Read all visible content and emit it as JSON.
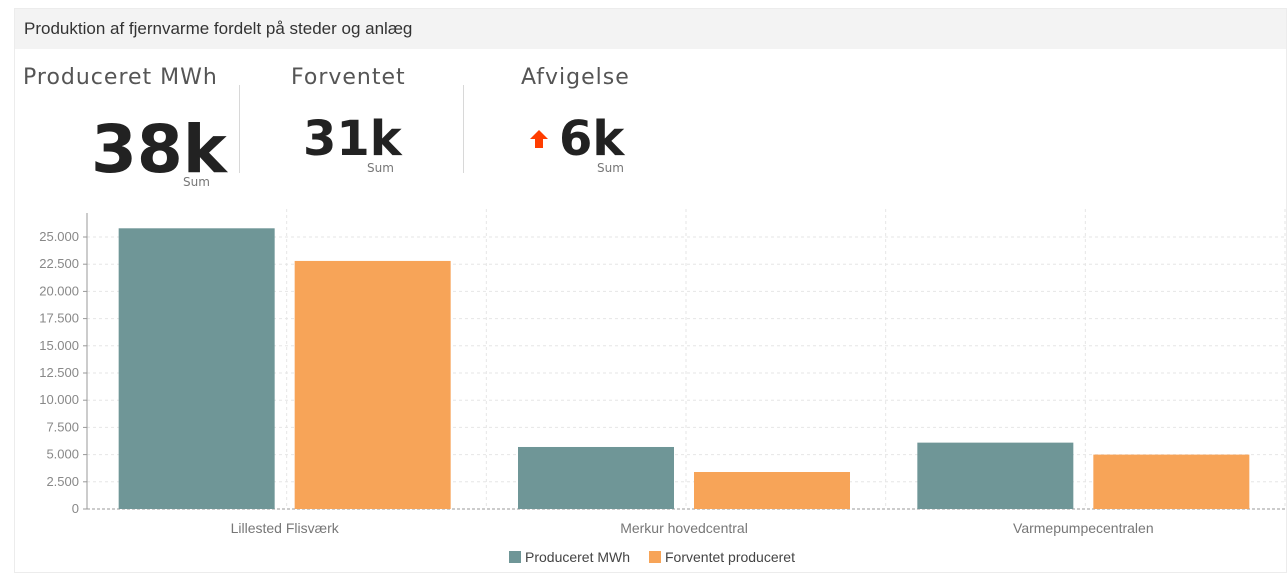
{
  "header": {
    "title": "Produktion af fjernvarme fordelt på steder og anlæg"
  },
  "kpis": [
    {
      "label": "Produceret MWh",
      "value": "38k",
      "sub": "Sum"
    },
    {
      "label": "Forventet",
      "value": "31k",
      "sub": "Sum"
    },
    {
      "label": "Afvigelse",
      "value": "6k",
      "sub": "Sum",
      "trend_icon": "arrow-up-icon",
      "trend_color": "#ff3d00"
    }
  ],
  "colors": {
    "produced": "#6f9697",
    "expected": "#f7a458",
    "grid": "#e6e6e6",
    "axis": "#999999"
  },
  "chart_data": {
    "type": "bar",
    "categories": [
      "Lillested Flisværk",
      "Merkur hovedcentral",
      "Varmepumpecentralen"
    ],
    "series": [
      {
        "name": "Produceret MWh",
        "values": [
          25800,
          5700,
          6100
        ]
      },
      {
        "name": "Forventet produceret",
        "values": [
          22800,
          3400,
          5000
        ]
      }
    ],
    "ylim": [
      0,
      25000
    ],
    "yticks": [
      "0",
      "2.500",
      "5.000",
      "7.500",
      "10.000",
      "12.500",
      "15.000",
      "17.500",
      "20.000",
      "22.500",
      "25.000"
    ],
    "ytick_values": [
      0,
      2500,
      5000,
      7500,
      10000,
      12500,
      15000,
      17500,
      20000,
      22500,
      25000
    ],
    "legend_position": "bottom",
    "grid": true
  }
}
